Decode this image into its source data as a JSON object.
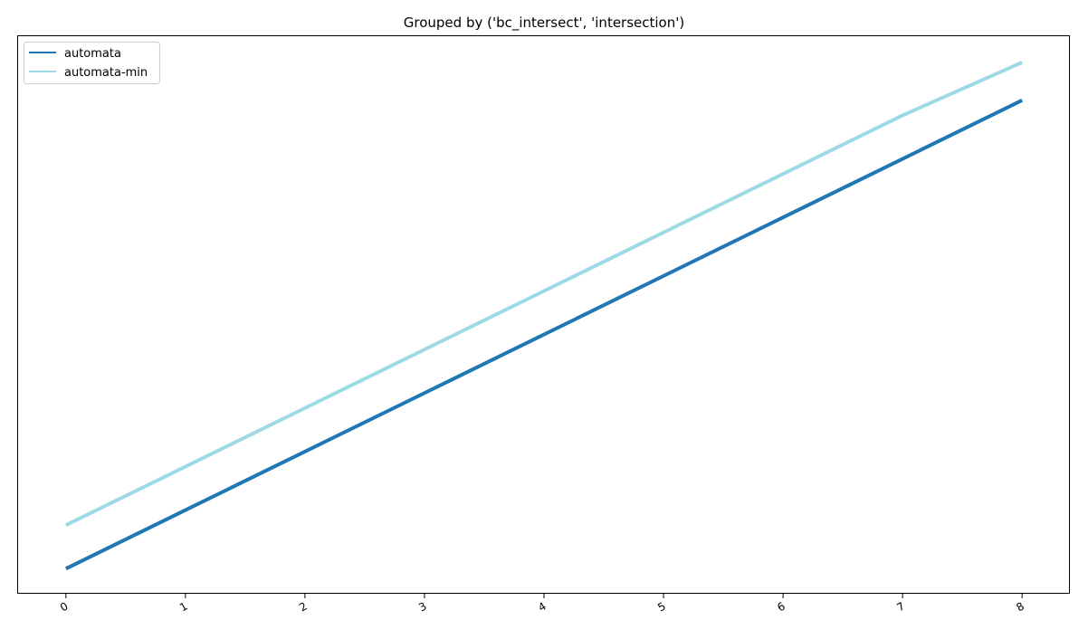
{
  "chart_data": {
    "type": "line",
    "title": "Grouped by ('bc_intersect', 'intersection')",
    "xlabel": "",
    "ylabel": "",
    "x": [
      0,
      1,
      2,
      3,
      4,
      5,
      6,
      7,
      8
    ],
    "xlim": [
      -0.4,
      8.4
    ],
    "ylim": [
      0,
      100
    ],
    "x_ticks": [
      "0",
      "1",
      "2",
      "3",
      "4",
      "5",
      "6",
      "7",
      "8"
    ],
    "y_ticks_visible": false,
    "grid": false,
    "legend": "top-left",
    "series": [
      {
        "name": "automata",
        "color": "#1f77b4",
        "values": [
          4.5,
          15,
          25.5,
          36,
          46.5,
          57,
          67.5,
          78,
          88.5
        ]
      },
      {
        "name": "automata-min",
        "color": "#9edae5",
        "values": [
          12.3,
          22.8,
          33.3,
          43.8,
          54.3,
          64.8,
          75.3,
          85.8,
          95.3
        ]
      }
    ]
  }
}
